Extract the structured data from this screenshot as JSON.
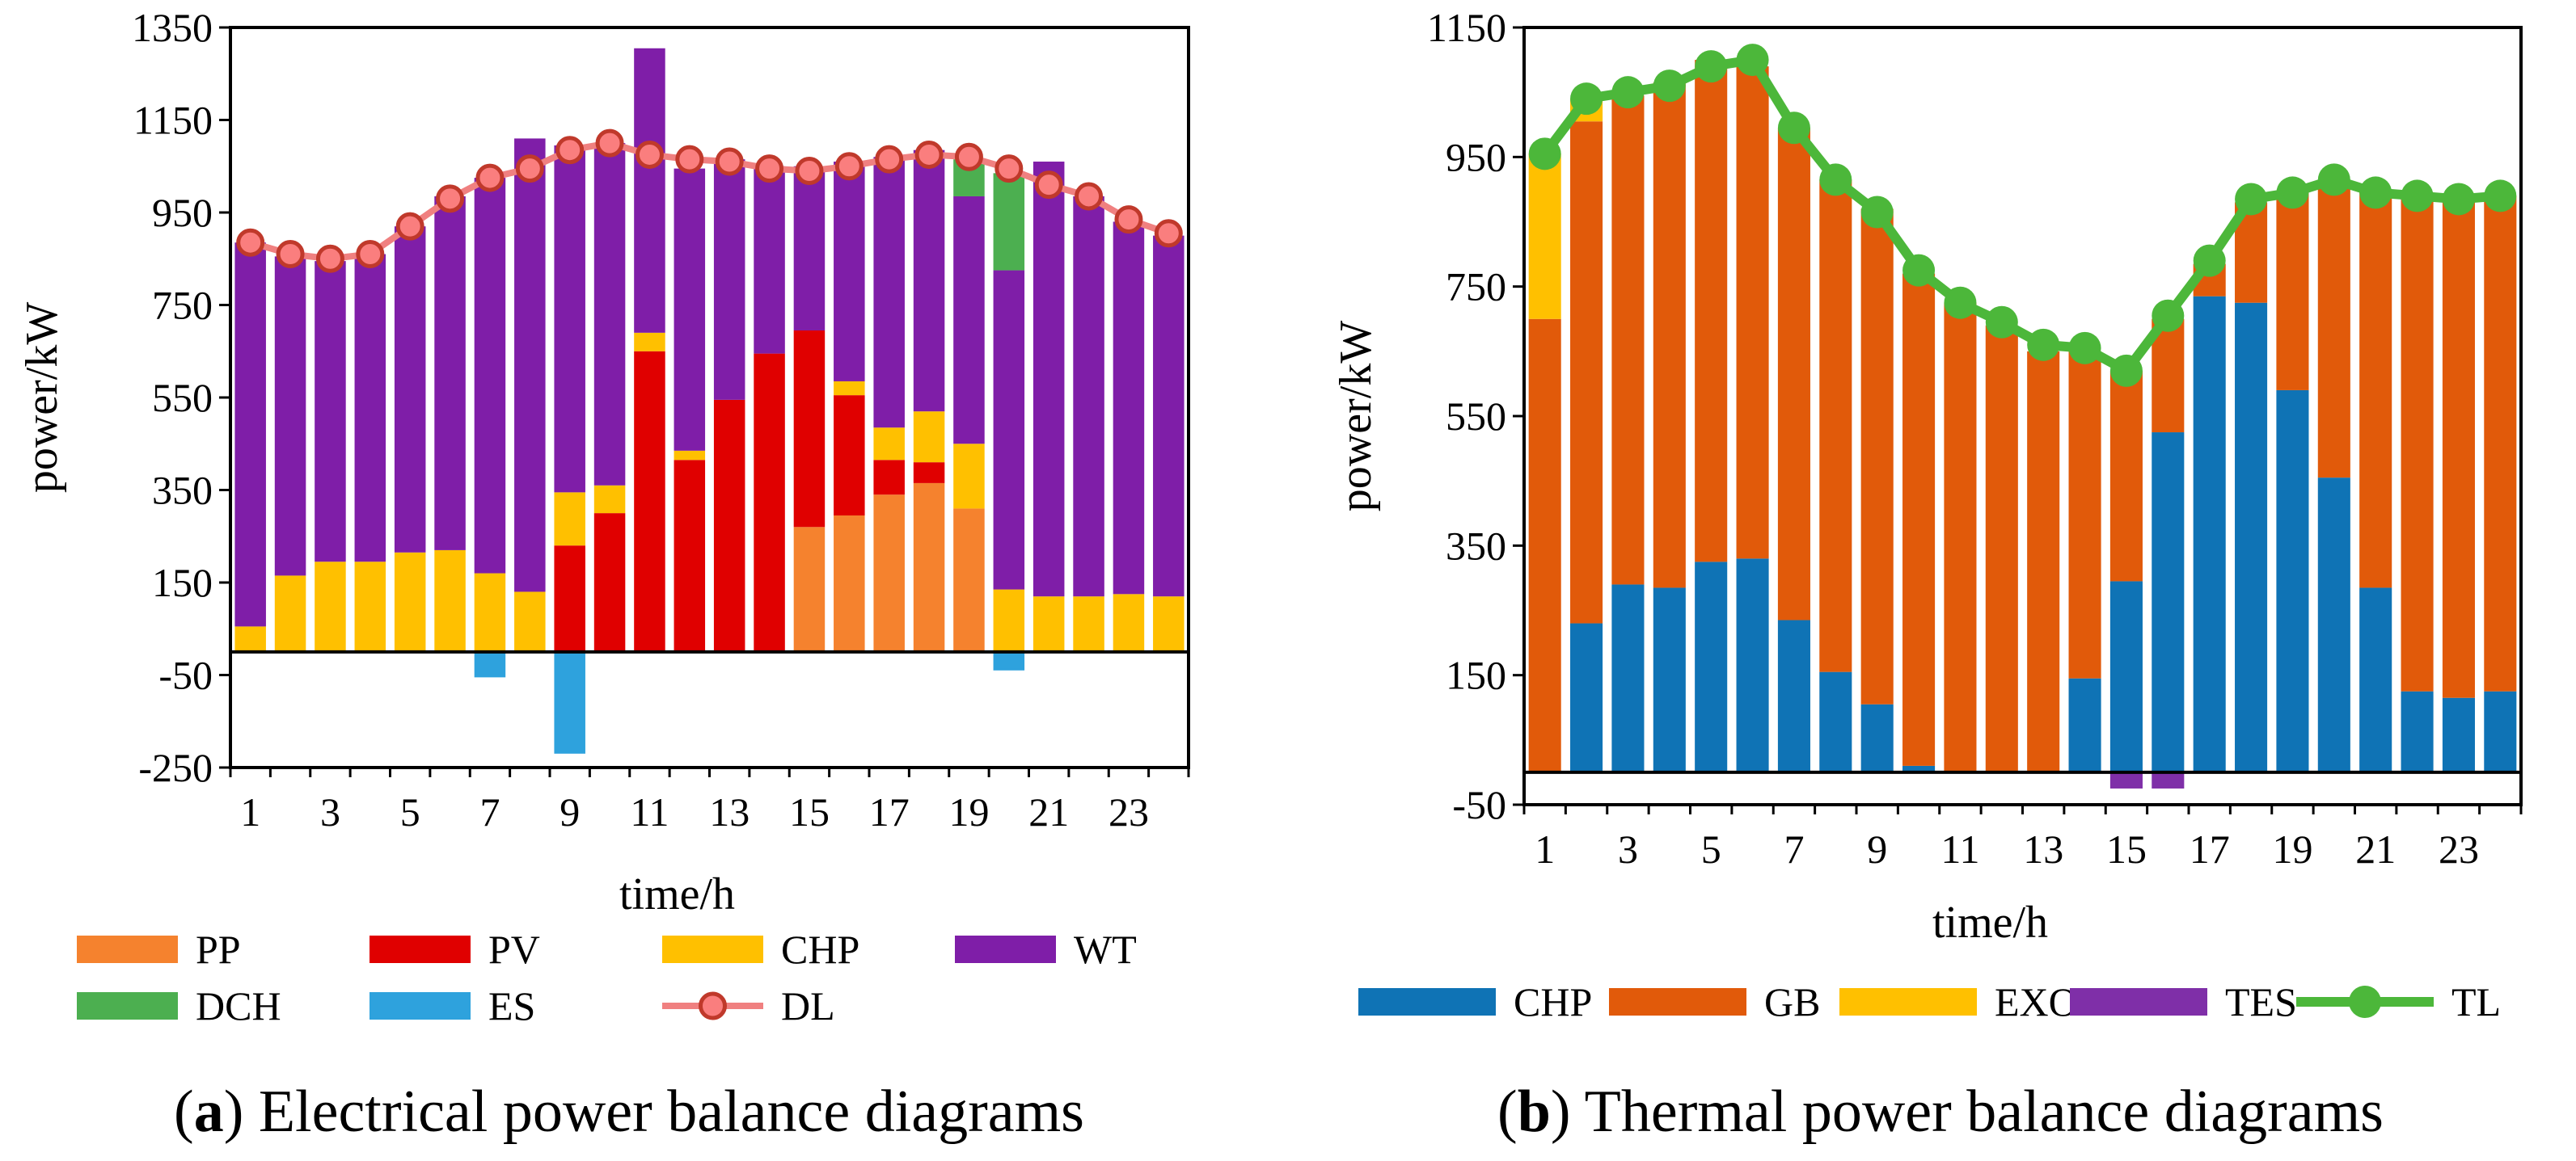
{
  "chart_data": [
    {
      "id": "electrical",
      "type": "bar",
      "stacked": true,
      "caption_letter": "a",
      "caption_text": "Electrical power balance diagrams",
      "xlabel": "time/h",
      "ylabel": "power/kW",
      "ylim": [
        -250,
        1350
      ],
      "yticks": [
        "1350",
        "1150",
        "950",
        "750",
        "550",
        "350",
        "150",
        "-50",
        "-250"
      ],
      "xtick_labels": [
        "1",
        "3",
        "5",
        "7",
        "9",
        "11",
        "13",
        "15",
        "17",
        "19",
        "21",
        "23"
      ],
      "x": [
        1,
        2,
        3,
        4,
        5,
        6,
        7,
        8,
        9,
        10,
        11,
        12,
        13,
        14,
        15,
        16,
        17,
        18,
        19,
        20,
        21,
        22,
        23,
        24
      ],
      "series": [
        {
          "name": "PP",
          "color": "#F5822E",
          "values": [
            0,
            0,
            0,
            0,
            0,
            0,
            0,
            0,
            0,
            0,
            0,
            0,
            0,
            0,
            270,
            295,
            340,
            365,
            310,
            0,
            0,
            0,
            0,
            0
          ]
        },
        {
          "name": "PV",
          "color": "#E00000",
          "values": [
            0,
            0,
            0,
            0,
            0,
            0,
            0,
            0,
            230,
            300,
            650,
            415,
            545,
            645,
            425,
            260,
            75,
            45,
            0,
            0,
            0,
            0,
            0,
            0
          ]
        },
        {
          "name": "CHP",
          "color": "#FFC000",
          "values": [
            55,
            165,
            195,
            195,
            215,
            220,
            170,
            130,
            115,
            60,
            40,
            20,
            0,
            0,
            0,
            30,
            70,
            110,
            140,
            135,
            120,
            120,
            125,
            120
          ]
        },
        {
          "name": "WT",
          "color": "#7F1EA8",
          "values": [
            830,
            690,
            650,
            665,
            705,
            765,
            855,
            980,
            750,
            740,
            615,
            610,
            520,
            405,
            355,
            475,
            585,
            565,
            535,
            690,
            940,
            865,
            805,
            780
          ]
        },
        {
          "name": "DCH",
          "color": "#4CAF50",
          "values": [
            0,
            0,
            0,
            0,
            0,
            0,
            0,
            0,
            0,
            0,
            0,
            0,
            0,
            0,
            0,
            0,
            0,
            0,
            80,
            210,
            0,
            0,
            0,
            0
          ]
        },
        {
          "name": "ES",
          "color": "#2EA2DD",
          "values": [
            0,
            0,
            0,
            0,
            0,
            0,
            -55,
            0,
            -220,
            0,
            0,
            0,
            0,
            0,
            0,
            0,
            0,
            0,
            0,
            -40,
            0,
            0,
            0,
            0
          ]
        }
      ],
      "line_series": {
        "name": "DL",
        "color": "#F08080",
        "values": [
          885,
          860,
          850,
          860,
          920,
          980,
          1025,
          1045,
          1085,
          1100,
          1075,
          1065,
          1060,
          1045,
          1040,
          1050,
          1065,
          1075,
          1070,
          1045,
          1010,
          985,
          935,
          905
        ]
      },
      "legend": [
        "PP",
        "PV",
        "CHP",
        "WT",
        "DCH",
        "ES",
        "DL"
      ]
    },
    {
      "id": "thermal",
      "type": "bar",
      "stacked": true,
      "caption_letter": "b",
      "caption_text": "Thermal power balance diagrams",
      "xlabel": "time/h",
      "ylabel": "power/kW",
      "ylim": [
        -50,
        1150
      ],
      "yticks": [
        "1150",
        "950",
        "750",
        "550",
        "350",
        "150",
        "-50"
      ],
      "xtick_labels": [
        "1",
        "3",
        "5",
        "7",
        "9",
        "11",
        "13",
        "15",
        "17",
        "19",
        "21",
        "23"
      ],
      "x": [
        1,
        2,
        3,
        4,
        5,
        6,
        7,
        8,
        9,
        10,
        11,
        12,
        13,
        14,
        15,
        16,
        17,
        18,
        19,
        20,
        21,
        22,
        23,
        24
      ],
      "series": [
        {
          "name": "CHP",
          "color": "#0F73B5",
          "values": [
            0,
            230,
            290,
            285,
            325,
            330,
            235,
            155,
            105,
            10,
            0,
            0,
            0,
            145,
            295,
            525,
            735,
            725,
            590,
            455,
            285,
            125,
            115,
            125
          ]
        },
        {
          "name": "GB",
          "color": "#E15A0A",
          "values": [
            700,
            775,
            755,
            780,
            775,
            760,
            760,
            760,
            765,
            760,
            725,
            690,
            650,
            505,
            325,
            175,
            50,
            155,
            305,
            455,
            615,
            765,
            770,
            765
          ]
        },
        {
          "name": "EXO",
          "color": "#FFC000",
          "values": [
            255,
            35,
            0,
            0,
            0,
            0,
            0,
            0,
            0,
            0,
            0,
            0,
            0,
            0,
            0,
            0,
            0,
            0,
            0,
            0,
            0,
            0,
            0,
            0
          ]
        },
        {
          "name": "TES",
          "color": "#7F2FA8",
          "values": [
            0,
            0,
            0,
            0,
            0,
            0,
            0,
            0,
            0,
            0,
            0,
            0,
            0,
            0,
            -25,
            -25,
            0,
            0,
            0,
            0,
            0,
            0,
            0,
            0
          ]
        }
      ],
      "line_series": {
        "name": "TL",
        "color": "#4CB73A",
        "values": [
          955,
          1040,
          1050,
          1060,
          1090,
          1100,
          995,
          915,
          865,
          775,
          725,
          695,
          660,
          655,
          620,
          705,
          790,
          885,
          895,
          915,
          895,
          890,
          885,
          890
        ]
      },
      "legend": [
        "CHP",
        "GB",
        "EXO",
        "TES",
        "TL"
      ]
    }
  ]
}
